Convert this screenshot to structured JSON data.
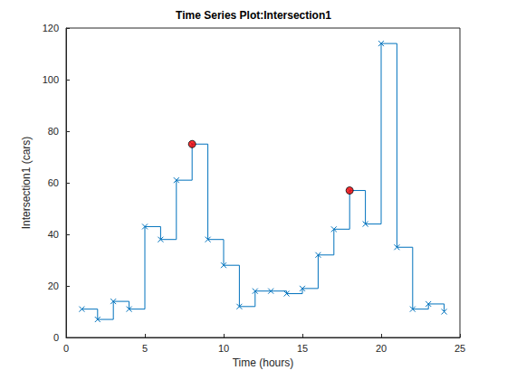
{
  "chart_data": {
    "type": "line",
    "title": "Time Series Plot:Intersection1",
    "x_label": "Time (hours)",
    "y_label": "Intersection1 (cars)",
    "series": [
      {
        "type": "stairs",
        "color": "#0072bd",
        "marker": "x",
        "x": [
          1,
          2,
          3,
          4,
          5,
          6,
          7,
          8,
          9,
          10,
          11,
          12,
          13,
          14,
          15,
          16,
          17,
          18,
          19,
          20,
          21,
          22,
          23,
          24
        ],
        "values": [
          11,
          7,
          14,
          11,
          43,
          38,
          61,
          75,
          38,
          28,
          12,
          18,
          18,
          17,
          19,
          32,
          42,
          57,
          44,
          114,
          35,
          11,
          13,
          10
        ]
      },
      {
        "type": "scatter",
        "color": "#ff0000",
        "marker": "circle",
        "x": [
          8,
          18
        ],
        "values": [
          75,
          57
        ]
      }
    ],
    "xlim": [
      0,
      25
    ],
    "xticks": [
      0,
      5,
      10,
      15,
      20,
      25
    ],
    "ylim": [
      0,
      120
    ],
    "yticks": [
      0,
      20,
      40,
      60,
      80,
      100,
      120
    ],
    "grid": false
  }
}
